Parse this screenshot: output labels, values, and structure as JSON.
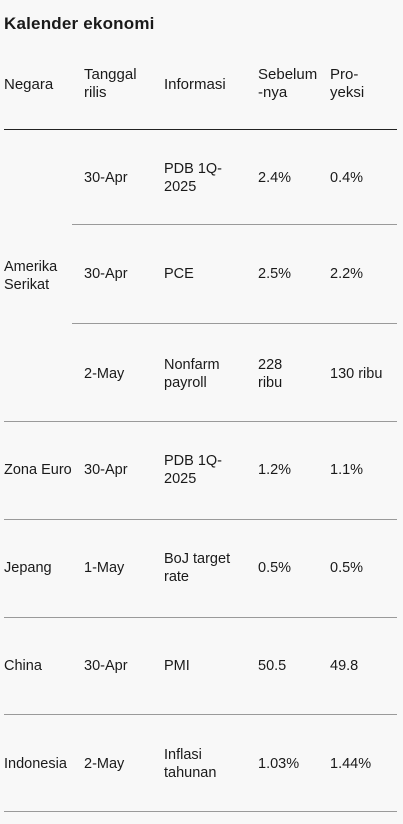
{
  "title": "Kalender ekonomi",
  "headers": {
    "negara": "Negara",
    "tanggal": "Tanggal\nrilis",
    "informasi": "Informasi",
    "sebelumnya": "Sebelum\n-nya",
    "proyeksi": "Pro-\nyeksi"
  },
  "rows": [
    {
      "negara": "",
      "tanggal": "30-Apr",
      "informasi": "PDB 1Q-\n2025",
      "sebelumnya": "2.4%",
      "proyeksi": "0.4%"
    },
    {
      "negara": "Amerika\nSerikat",
      "tanggal": "30-Apr",
      "informasi": "PCE",
      "sebelumnya": "2.5%",
      "proyeksi": "2.2%"
    },
    {
      "negara": "",
      "tanggal": "2-May",
      "informasi": "Nonfarm\npayroll",
      "sebelumnya": "228\nribu",
      "proyeksi": "130 ribu"
    },
    {
      "negara": "Zona Euro",
      "tanggal": "30-Apr",
      "informasi": "PDB 1Q-\n2025",
      "sebelumnya": "1.2%",
      "proyeksi": "1.1%"
    },
    {
      "negara": "Jepang",
      "tanggal": "1-May",
      "informasi": "BoJ target\nrate",
      "sebelumnya": "0.5%",
      "proyeksi": "0.5%"
    },
    {
      "negara": "China",
      "tanggal": "30-Apr",
      "informasi": "PMI",
      "sebelumnya": "50.5",
      "proyeksi": "49.8"
    },
    {
      "negara": "Indonesia",
      "tanggal": "2-May",
      "informasi": "Inflasi\ntahunan",
      "sebelumnya": "1.03%",
      "proyeksi": "1.44%"
    }
  ]
}
